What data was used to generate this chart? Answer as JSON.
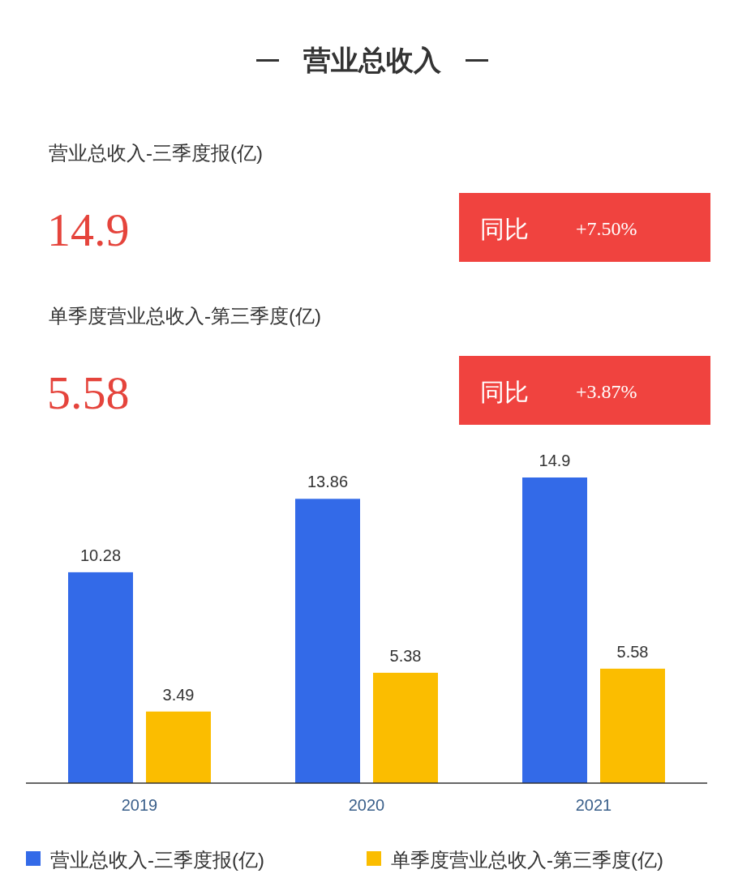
{
  "chart_data": {
    "type": "bar",
    "title": "营业总收入",
    "annotations": [
      "营业总收入-三季度报(亿)",
      "14.9",
      "同比",
      "+7.50%",
      "单季度营业总收入-第三季度(亿)",
      "5.58",
      "同比",
      "+3.87%"
    ],
    "categories": [
      "2019",
      "2020",
      "2021"
    ],
    "series": [
      {
        "name": "营业总收入-三季度报(亿)",
        "color": "#336ae8",
        "values": [
          10.28,
          13.86,
          14.9
        ]
      },
      {
        "name": "单季度营业总收入-第三季度(亿)",
        "color": "#fbbd00",
        "values": [
          3.49,
          5.38,
          5.58
        ]
      }
    ],
    "data_labels": true,
    "legend": "bottom"
  }
}
